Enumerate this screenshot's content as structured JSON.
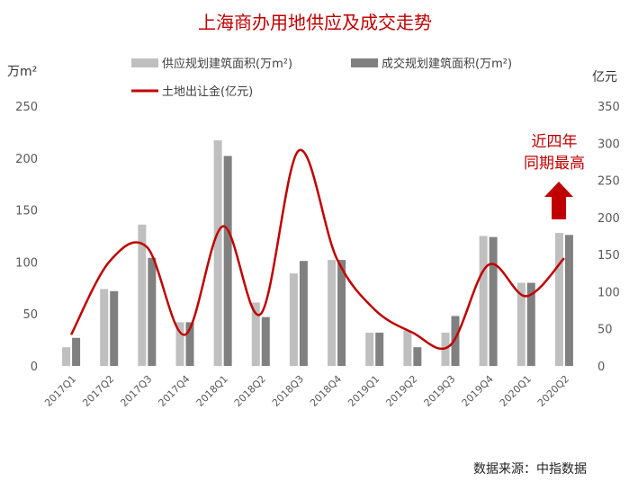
{
  "chart_data": {
    "type": "bar",
    "title": "上海商办用地供应及成交走势",
    "categories": [
      "2017Q1",
      "2017Q2",
      "2017Q3",
      "2017Q4",
      "2018Q1",
      "2018Q2",
      "2018Q3",
      "2018Q4",
      "2019Q1",
      "2019Q2",
      "2019Q3",
      "2019Q4",
      "2020Q1",
      "2020Q2"
    ],
    "y_left": {
      "unit": "万m²",
      "range": [
        0,
        250
      ],
      "ticks": [
        "0",
        "50",
        "100",
        "150",
        "200",
        "250"
      ]
    },
    "y_right": {
      "unit": "亿元",
      "range": [
        0,
        350
      ],
      "ticks": [
        "0",
        "50",
        "100",
        "150",
        "200",
        "250",
        "300",
        "350"
      ]
    },
    "series": [
      {
        "name": "供应规划建筑面积(万m²)",
        "type": "bar",
        "axis": "left",
        "color": "#bfbfbf",
        "values": [
          18,
          74,
          136,
          42,
          217,
          61,
          89,
          102,
          32,
          34,
          32,
          125,
          80,
          128
        ]
      },
      {
        "name": "成交规划建筑面积(万m²)",
        "type": "bar",
        "axis": "left",
        "color": "#808080",
        "values": [
          27,
          72,
          104,
          42,
          202,
          47,
          101,
          102,
          32,
          18,
          48,
          124,
          80,
          126
        ]
      },
      {
        "name": "土地出让金(亿元)",
        "type": "line",
        "axis": "right",
        "color": "#c00000",
        "values": [
          42,
          140,
          160,
          42,
          188,
          70,
          290,
          145,
          76,
          45,
          28,
          136,
          94,
          145
        ]
      }
    ],
    "legend": "top",
    "grid": false,
    "annotation": {
      "line1": "近四年",
      "line2": "同期最高",
      "arrow": "up",
      "color": "#c00000"
    }
  },
  "source": "数据来源：中指数据"
}
